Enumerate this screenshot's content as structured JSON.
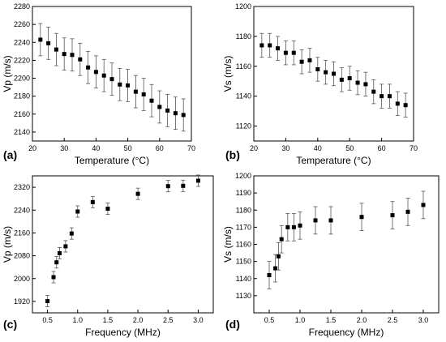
{
  "chart_data": [
    {
      "type": "scatter",
      "panel_label": "(a)",
      "xlabel": "Temperature (°C)",
      "ylabel": "Vp (m/s)",
      "xlim": [
        20,
        70
      ],
      "ylim": [
        2130,
        2280
      ],
      "xticks": [
        "20",
        "30",
        "40",
        "50",
        "60",
        "70"
      ],
      "yticks": [
        "2140",
        "2160",
        "2180",
        "2200",
        "2220",
        "2240",
        "2260",
        "2280"
      ],
      "x": [
        22.5,
        25,
        27.5,
        30,
        32.5,
        35,
        37.5,
        40,
        42.5,
        45,
        47.5,
        50,
        52.5,
        55,
        57.5,
        60,
        62.5,
        65,
        67.5
      ],
      "y": [
        2243,
        2239,
        2232,
        2227,
        2226,
        2221,
        2212,
        2207,
        2203,
        2199,
        2193,
        2192,
        2185,
        2182,
        2175,
        2168,
        2164,
        2161,
        2159
      ],
      "err": [
        18,
        18,
        18,
        18,
        18,
        18,
        18,
        18,
        18,
        18,
        18,
        18,
        18,
        18,
        18,
        18,
        18,
        18,
        18
      ],
      "marker": "square",
      "color": "#000000"
    },
    {
      "type": "scatter",
      "panel_label": "(b)",
      "xlabel": "Temperature (°C)",
      "ylabel": "Vs (m/s)",
      "xlim": [
        20,
        70
      ],
      "ylim": [
        1110,
        1200
      ],
      "xticks": [
        "20",
        "30",
        "40",
        "50",
        "60",
        "70"
      ],
      "yticks": [
        "1120",
        "1140",
        "1160",
        "1180",
        "1200"
      ],
      "x": [
        22.5,
        25,
        27.5,
        30,
        32.5,
        35,
        37.5,
        40,
        42.5,
        45,
        47.5,
        50,
        52.5,
        55,
        57.5,
        60,
        62.5,
        65,
        67.5
      ],
      "y": [
        1174,
        1174,
        1172,
        1169,
        1169,
        1163,
        1164,
        1158,
        1156,
        1155,
        1151,
        1152,
        1149,
        1148,
        1143,
        1140,
        1140,
        1135,
        1134
      ],
      "err": [
        8,
        8,
        8,
        8,
        8,
        8,
        8,
        8,
        8,
        8,
        8,
        8,
        8,
        8,
        8,
        8,
        8,
        8,
        8
      ],
      "marker": "square",
      "color": "#000000"
    },
    {
      "type": "scatter",
      "panel_label": "(c)",
      "xlabel": "Frequency (MHz)",
      "ylabel": "Vp (m/s)",
      "xlim": [
        0.25,
        3.25
      ],
      "ylim": [
        1880,
        2360
      ],
      "xticks": [
        "0.5",
        "1.0",
        "1.5",
        "2.0",
        "2.5",
        "3.0"
      ],
      "yticks": [
        "1920",
        "2000",
        "2080",
        "2160",
        "2240",
        "2320"
      ],
      "x": [
        0.5,
        0.6,
        0.65,
        0.7,
        0.8,
        0.9,
        1.0,
        1.25,
        1.5,
        2.0,
        2.5,
        2.75,
        3.0
      ],
      "y": [
        1921,
        2005,
        2057,
        2089,
        2113,
        2158,
        2235,
        2268,
        2245,
        2297,
        2324,
        2325,
        2343
      ],
      "err": [
        20,
        20,
        20,
        20,
        20,
        20,
        20,
        20,
        20,
        20,
        20,
        20,
        20
      ],
      "marker": "square",
      "color": "#000000"
    },
    {
      "type": "scatter",
      "panel_label": "(d)",
      "xlabel": "Frequency (MHz)",
      "ylabel": "Vs (m/s)",
      "xlim": [
        0.25,
        3.25
      ],
      "ylim": [
        1120,
        1200
      ],
      "xticks": [
        "0.5",
        "1.0",
        "1.5",
        "2.0",
        "2.5",
        "3.0"
      ],
      "yticks": [
        "1130",
        "1140",
        "1150",
        "1160",
        "1170",
        "1180",
        "1190",
        "1200"
      ],
      "x": [
        0.5,
        0.6,
        0.65,
        0.7,
        0.8,
        0.9,
        1.0,
        1.25,
        1.5,
        2.0,
        2.5,
        2.75,
        3.0
      ],
      "y": [
        1142,
        1146,
        1153,
        1163,
        1170,
        1170,
        1171,
        1174,
        1174,
        1176,
        1177,
        1179,
        1183
      ],
      "err": [
        8,
        8,
        8,
        8,
        8,
        8,
        8,
        8,
        8,
        8,
        8,
        8,
        8
      ],
      "marker": "square",
      "color": "#000000"
    }
  ]
}
